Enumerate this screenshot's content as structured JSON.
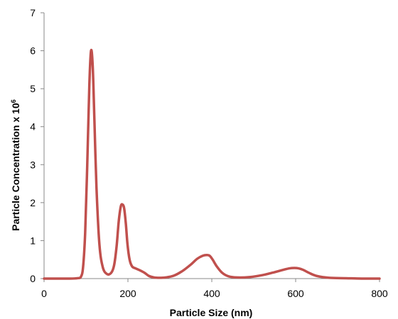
{
  "chart_data": {
    "type": "line",
    "xlabel": "Particle Size (nm)",
    "ylabel_main": "Particle Concentration x 10",
    "ylabel_exponent": "6",
    "xlim": [
      0,
      800
    ],
    "ylim": [
      0,
      7
    ],
    "x_ticks": [
      0,
      200,
      400,
      600,
      800
    ],
    "y_ticks": [
      0,
      1,
      2,
      3,
      4,
      5,
      6,
      7
    ],
    "grid": false,
    "legend": "none",
    "series": [
      {
        "color": "#C0504D",
        "x": [
          0,
          60,
          80,
          88,
          93,
          98,
          103,
          108,
          112,
          116,
          120,
          125,
          132,
          140,
          150,
          160,
          167,
          173,
          178,
          183,
          187,
          191,
          195,
          199,
          204,
          210,
          218,
          228,
          240,
          250,
          262,
          275,
          290,
          310,
          330,
          350,
          365,
          378,
          388,
          395,
          402,
          412,
          425,
          440,
          460,
          490,
          520,
          550,
          570,
          585,
          597,
          607,
          618,
          632,
          650,
          680,
          720,
          760,
          800
        ],
        "y": [
          0.0,
          0.0,
          0.01,
          0.05,
          0.3,
          1.2,
          3.0,
          5.1,
          6.0,
          5.6,
          4.2,
          2.4,
          0.9,
          0.3,
          0.12,
          0.15,
          0.35,
          0.85,
          1.5,
          1.9,
          1.95,
          1.85,
          1.45,
          0.9,
          0.5,
          0.32,
          0.27,
          0.22,
          0.15,
          0.07,
          0.03,
          0.02,
          0.03,
          0.08,
          0.2,
          0.37,
          0.52,
          0.6,
          0.62,
          0.6,
          0.5,
          0.32,
          0.15,
          0.06,
          0.03,
          0.04,
          0.09,
          0.17,
          0.23,
          0.27,
          0.28,
          0.27,
          0.23,
          0.15,
          0.07,
          0.02,
          0.01,
          0.0,
          0.0
        ]
      }
    ]
  }
}
